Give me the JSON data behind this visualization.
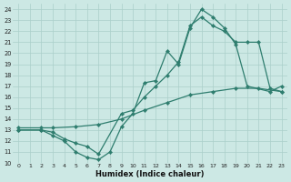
{
  "xlabel": "Humidex (Indice chaleur)",
  "bg_color": "#cce8e4",
  "line_color": "#2e7d6e",
  "grid_color": "#aacfca",
  "xlim": [
    -0.5,
    23.5
  ],
  "ylim": [
    10,
    24.5
  ],
  "xticks": [
    0,
    1,
    2,
    3,
    4,
    5,
    6,
    7,
    8,
    9,
    10,
    11,
    12,
    13,
    14,
    15,
    16,
    17,
    18,
    19,
    20,
    21,
    22,
    23
  ],
  "yticks": [
    10,
    11,
    12,
    13,
    14,
    15,
    16,
    17,
    18,
    19,
    20,
    21,
    22,
    23,
    24
  ],
  "line1_x": [
    0,
    2,
    3,
    4,
    5,
    6,
    7,
    8,
    9,
    10,
    11,
    12,
    13,
    14,
    15,
    16,
    17,
    18,
    19,
    20,
    22,
    23
  ],
  "line1_y": [
    13,
    13,
    12.5,
    12,
    11,
    10.5,
    10.3,
    11,
    13.3,
    14.5,
    17.3,
    17.5,
    20.2,
    19,
    22.3,
    24,
    23.3,
    22.3,
    20.8,
    17,
    16.5,
    17
  ],
  "line2_x": [
    0,
    2,
    3,
    4,
    5,
    6,
    7,
    9,
    10,
    11,
    12,
    13,
    14,
    15,
    16,
    17,
    18,
    19,
    20,
    21,
    22,
    23
  ],
  "line2_y": [
    13,
    13,
    12.8,
    12.2,
    11.8,
    11.5,
    10.8,
    14.5,
    14.8,
    16,
    17,
    18,
    19.2,
    22.5,
    23.3,
    22.5,
    22,
    21,
    21,
    21,
    16.8,
    16.5
  ],
  "line3_x": [
    0,
    2,
    3,
    5,
    7,
    9,
    11,
    13,
    15,
    17,
    19,
    21,
    23
  ],
  "line3_y": [
    13.2,
    13.2,
    13.2,
    13.3,
    13.5,
    14.0,
    14.8,
    15.5,
    16.2,
    16.5,
    16.8,
    16.8,
    16.5
  ]
}
